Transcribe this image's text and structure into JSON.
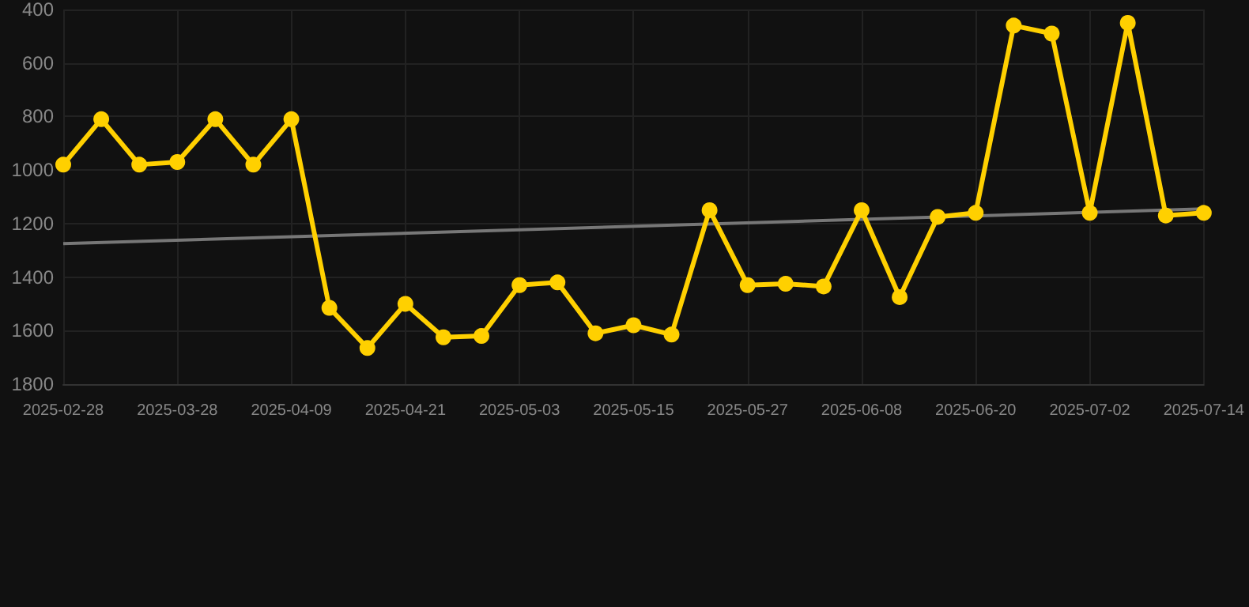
{
  "chart_data": {
    "type": "line",
    "categories": [
      "2025-02-28",
      null,
      null,
      "2025-03-28",
      null,
      null,
      "2025-04-09",
      null,
      null,
      "2025-04-21",
      null,
      null,
      "2025-05-03",
      null,
      null,
      "2025-05-15",
      null,
      null,
      "2025-05-27",
      null,
      null,
      "2025-06-08",
      null,
      null,
      "2025-06-20",
      null,
      null,
      "2025-07-02",
      null,
      null,
      "2025-07-14"
    ],
    "series": [
      {
        "color": "#ffd000",
        "marker": "circle",
        "values": [
          980,
          810,
          980,
          970,
          810,
          980,
          810,
          1515,
          1665,
          1500,
          1625,
          1620,
          1430,
          1420,
          1610,
          1580,
          1615,
          1150,
          1430,
          1425,
          1435,
          1150,
          1475,
          1175,
          1160,
          460,
          490,
          1160,
          450,
          1170,
          1160
        ]
      },
      {
        "color": "#777777",
        "marker": "none",
        "values": [
          1275,
          null,
          null,
          null,
          null,
          null,
          null,
          null,
          null,
          null,
          null,
          null,
          null,
          null,
          null,
          null,
          null,
          null,
          null,
          null,
          null,
          null,
          null,
          null,
          null,
          null,
          null,
          null,
          null,
          null,
          1145
        ]
      }
    ],
    "ylim": [
      1800,
      400
    ],
    "yticks": [
      400,
      600,
      800,
      1000,
      1200,
      1400,
      1600,
      1800
    ],
    "grid": true
  }
}
